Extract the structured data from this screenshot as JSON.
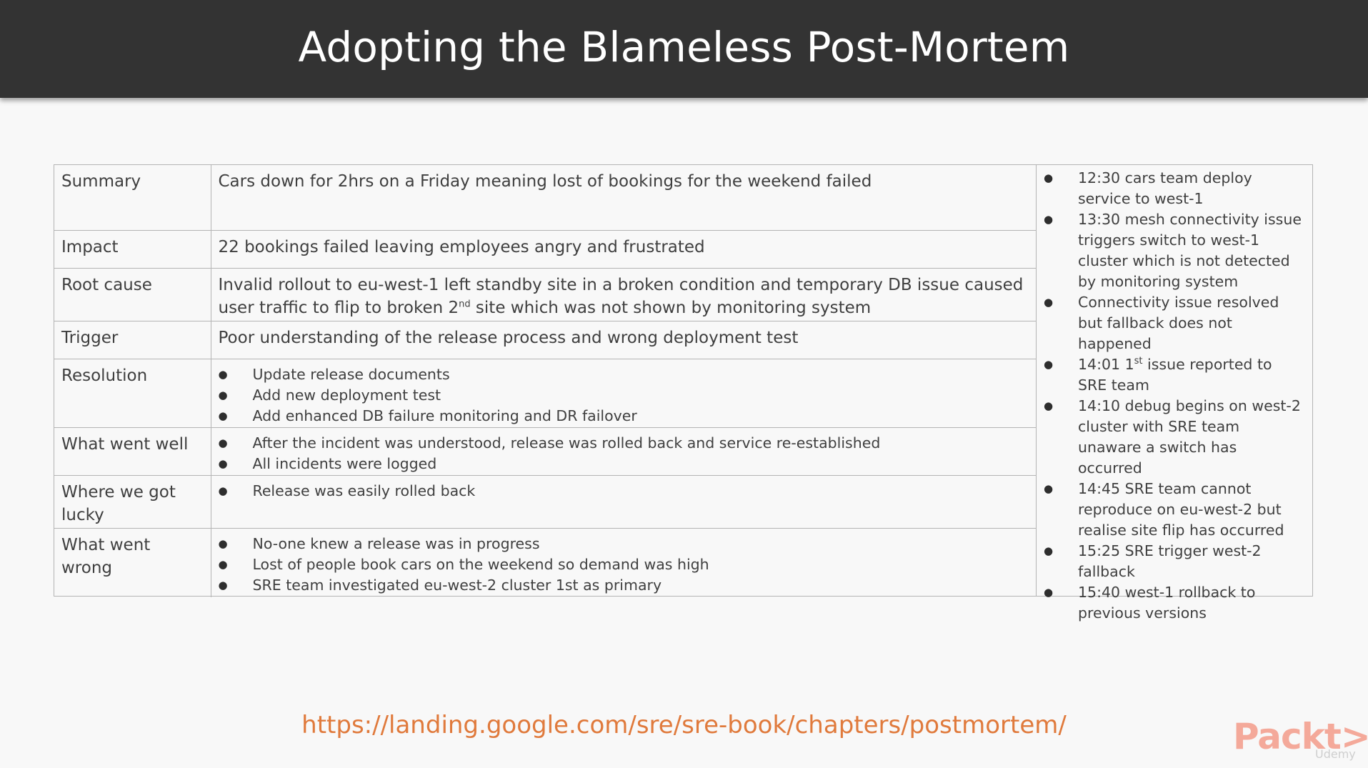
{
  "title": "Adopting the Blameless Post-Mortem",
  "rows": [
    {
      "label": "Summary",
      "text": "Cars down for 2hrs on a Friday meaning lost of bookings for the weekend failed"
    },
    {
      "label": "Impact",
      "text": "22 bookings failed leaving employees angry and frustrated"
    },
    {
      "label": "Root cause",
      "text_a": "Invalid rollout to eu-west-1 left standby site in a broken condition and temporary DB issue caused user traffic to flip to broken 2",
      "sup": "nd",
      "text_b": " site which was not shown by monitoring system"
    },
    {
      "label": "Trigger",
      "text": "Poor understanding of the release process and wrong deployment test"
    },
    {
      "label": "Resolution",
      "items": [
        "Update release documents",
        "Add new deployment test",
        "Add enhanced DB failure monitoring and DR failover"
      ]
    },
    {
      "label": "What went well",
      "items": [
        "After the incident was understood, release was rolled back and service re-established",
        "All incidents were logged"
      ]
    },
    {
      "label": "Where we got lucky",
      "items": [
        "Release was easily rolled back"
      ]
    },
    {
      "label": "What went wrong",
      "items": [
        "No-one knew a release was in progress",
        "Lost of people book cars on the weekend so demand was high",
        "SRE team investigated eu-west-2 cluster 1st as primary"
      ]
    }
  ],
  "timeline": [
    {
      "text": "12:30 cars team deploy service to west-1"
    },
    {
      "text": "13:30 mesh connectivity issue triggers switch to west-1 cluster which is not detected by monitoring system"
    },
    {
      "text": "Connectivity issue resolved but fallback does not happened"
    },
    {
      "text_a": "14:01 1",
      "sup": "st",
      "text_b": "  issue reported to SRE team"
    },
    {
      "text": "14:10 debug begins on west-2 cluster with SRE team unaware a switch has occurred"
    },
    {
      "text": "14:45 SRE team cannot reproduce on eu-west-2 but realise site flip has occurred"
    },
    {
      "text": "15:25 SRE trigger west-2 fallback"
    },
    {
      "text": "15:40 west-1 rollback to previous versions"
    }
  ],
  "footer": {
    "url": "https://landing.google.com/sre/sre-book/chapters/postmortem/",
    "logo": "Packt>",
    "logo_sub": "Udemy"
  },
  "colors": {
    "title_bar": "#333333",
    "url": "#e07a3c",
    "logo": "#f4a99a"
  }
}
